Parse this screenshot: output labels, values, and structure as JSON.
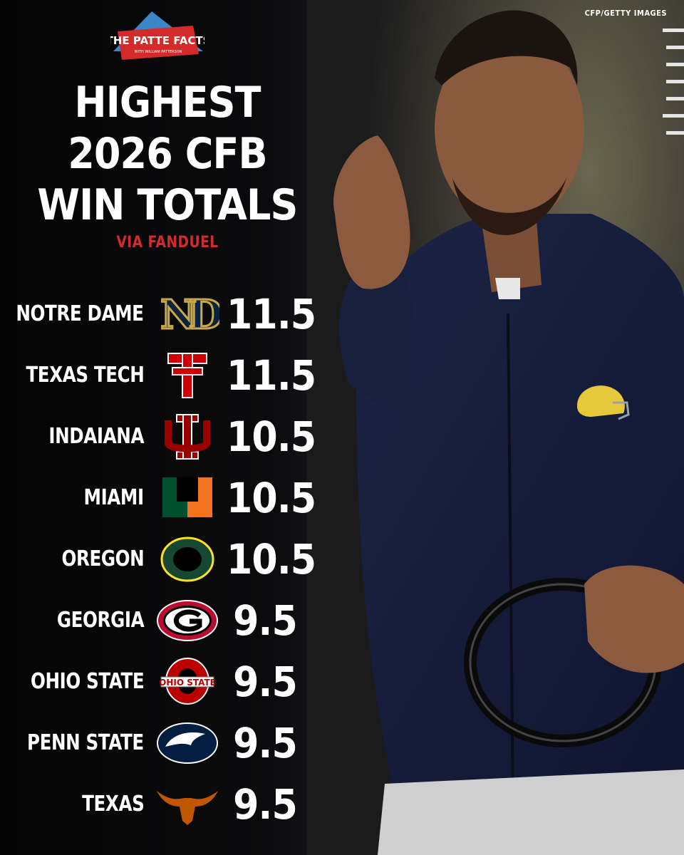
{
  "credit": "CFP/GETTY IMAGES",
  "brand": {
    "logo_main": "THE PATTE FACTS",
    "logo_sub": "WITH WILLIAM PATTERSON"
  },
  "title_lines": [
    "HIGHEST",
    "2026 CFB",
    "WIN TOTALS"
  ],
  "source": "VIA FANDUEL",
  "colors": {
    "accent_red": "#d42a2a",
    "background": "#000000"
  },
  "rows": [
    {
      "team": "NOTRE DAME",
      "total": "11.5",
      "icon": "notre-dame-icon"
    },
    {
      "team": "TEXAS TECH",
      "total": "11.5",
      "icon": "texas-tech-icon"
    },
    {
      "team": "INDAIANA",
      "total": "10.5",
      "icon": "indiana-icon"
    },
    {
      "team": "MIAMI",
      "total": "10.5",
      "icon": "miami-icon"
    },
    {
      "team": "OREGON",
      "total": "10.5",
      "icon": "oregon-icon"
    },
    {
      "team": "GEORGIA",
      "total": "9.5",
      "icon": "georgia-icon"
    },
    {
      "team": "OHIO STATE",
      "total": "9.5",
      "icon": "ohio-state-icon"
    },
    {
      "team": "PENN STATE",
      "total": "9.5",
      "icon": "penn-state-icon"
    },
    {
      "team": "TEXAS",
      "total": "9.5",
      "icon": "texas-longhorn-icon"
    }
  ]
}
